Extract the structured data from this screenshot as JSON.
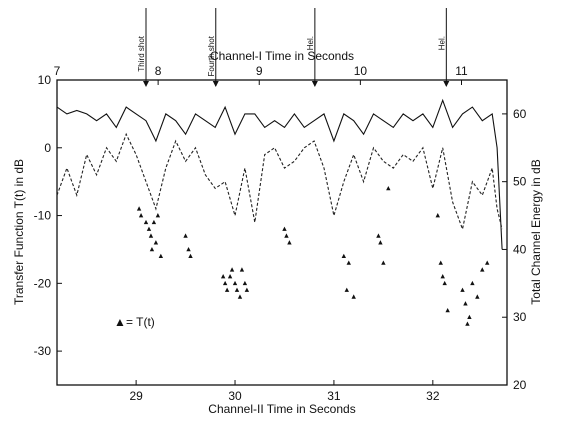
{
  "chart_data": {
    "type": "line",
    "top_axis": {
      "label": "Channel-I  Time  in  Seconds",
      "ticks": [
        7,
        8,
        9,
        10,
        11
      ],
      "range": [
        7,
        11.45
      ]
    },
    "bottom_axis": {
      "label": "Channel-II  Time  in  Seconds",
      "ticks": [
        29,
        30,
        31,
        32
      ],
      "range": [
        28.2,
        32.75
      ]
    },
    "left_axis": {
      "label": "Transfer Function  T(t)  in  dB",
      "ticks": [
        10,
        0,
        -10,
        -20,
        -30
      ],
      "range": [
        -35,
        10
      ]
    },
    "right_axis": {
      "label": "Total Channel Energy  in  dB",
      "ticks": [
        60,
        50,
        40,
        30,
        20
      ],
      "range": [
        20,
        65
      ]
    },
    "annotations": [
      {
        "text": "Third shot",
        "x_top": 7.88
      },
      {
        "text": "Fourth shot",
        "x_top": 8.57
      },
      {
        "text": "Hel.",
        "x_top": 9.55
      },
      {
        "text": "Hel.",
        "x_top": 10.85
      }
    ],
    "legend": {
      "marker": "▲",
      "text": "= T(t)"
    },
    "series": [
      {
        "style": "solid",
        "axis": "right",
        "x": [
          28.2,
          28.3,
          28.4,
          28.5,
          28.6,
          28.7,
          28.8,
          28.9,
          29.0,
          29.1,
          29.2,
          29.3,
          29.4,
          29.5,
          29.6,
          29.7,
          29.8,
          29.9,
          30.0,
          30.1,
          30.2,
          30.3,
          30.4,
          30.5,
          30.6,
          30.7,
          30.8,
          30.9,
          31.0,
          31.1,
          31.2,
          31.3,
          31.4,
          31.5,
          31.6,
          31.7,
          31.8,
          31.9,
          32.0,
          32.1,
          32.2,
          32.3,
          32.4,
          32.5,
          32.6,
          32.65,
          32.7
        ],
        "y": [
          61,
          60,
          60.5,
          60,
          59,
          60,
          58,
          61,
          60,
          59,
          56,
          60,
          59,
          57,
          60,
          59,
          58,
          61,
          57,
          60,
          60,
          58,
          59,
          58,
          60,
          58,
          59,
          60,
          56,
          60,
          59,
          57,
          60,
          59,
          58,
          60,
          59,
          60,
          58,
          62,
          58,
          60,
          61,
          59,
          60,
          55,
          40
        ]
      },
      {
        "style": "dashed",
        "axis": "right",
        "x": [
          28.2,
          28.3,
          28.4,
          28.5,
          28.6,
          28.7,
          28.8,
          28.9,
          29.0,
          29.1,
          29.2,
          29.3,
          29.4,
          29.5,
          29.6,
          29.7,
          29.8,
          29.9,
          30.0,
          30.1,
          30.2,
          30.3,
          30.4,
          30.5,
          30.6,
          30.7,
          30.8,
          30.9,
          31.0,
          31.1,
          31.2,
          31.3,
          31.4,
          31.5,
          31.6,
          31.7,
          31.8,
          31.9,
          32.0,
          32.1,
          32.2,
          32.3,
          32.4,
          32.5,
          32.6,
          32.65,
          32.7
        ],
        "y": [
          48,
          52,
          48,
          54,
          51,
          55,
          53,
          57,
          54,
          50,
          46,
          52,
          56,
          53,
          55,
          51,
          49,
          50,
          45,
          52,
          44,
          54,
          55,
          52,
          53,
          55,
          56,
          52,
          45,
          50,
          54,
          50,
          55,
          53,
          52,
          54,
          53,
          55,
          49,
          55,
          47,
          43,
          50,
          48,
          52,
          46,
          43
        ]
      },
      {
        "style": "triangles",
        "name": "T(t)",
        "axis": "left",
        "x": [
          29.03,
          29.05,
          29.1,
          29.13,
          29.15,
          29.16,
          29.18,
          29.2,
          29.22,
          29.25,
          29.5,
          29.53,
          29.55,
          29.88,
          29.9,
          29.92,
          29.95,
          29.97,
          30.0,
          30.02,
          30.05,
          30.07,
          30.1,
          30.12,
          30.5,
          30.52,
          30.55,
          31.1,
          31.13,
          31.15,
          31.2,
          31.45,
          31.47,
          31.5,
          31.55,
          32.05,
          32.08,
          32.1,
          32.12,
          32.15,
          32.3,
          32.33,
          32.35,
          32.37,
          32.4,
          32.45,
          32.5,
          32.55
        ],
        "y": [
          -9,
          -10,
          -11,
          -12,
          -13,
          -15,
          -11,
          -14,
          -10,
          -16,
          -13,
          -15,
          -16,
          -19,
          -20,
          -21,
          -19,
          -18,
          -20,
          -21,
          -22,
          -18,
          -20,
          -21,
          -12,
          -13,
          -14,
          -16,
          -21,
          -17,
          -22,
          -13,
          -14,
          -17,
          -6,
          -10,
          -17,
          -19,
          -20,
          -24,
          -21,
          -23,
          -26,
          -25,
          -20,
          -22,
          -18,
          -17
        ]
      }
    ]
  }
}
